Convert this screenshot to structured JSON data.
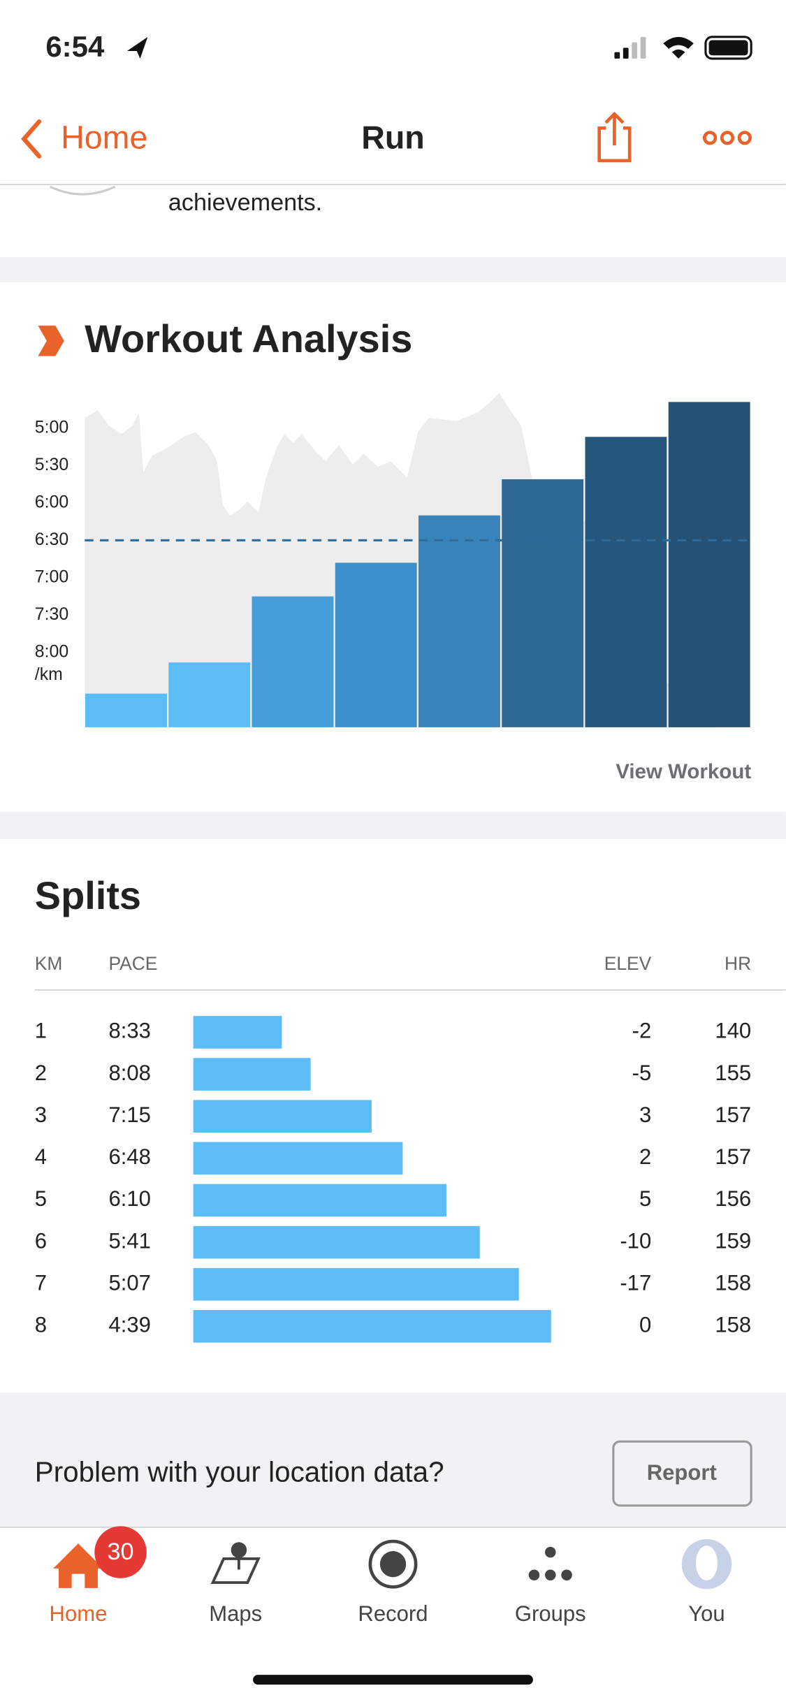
{
  "status_bar": {
    "time": "6:54"
  },
  "nav": {
    "back": "Home",
    "title": "Run"
  },
  "achievements_text": "achievements.",
  "chart_data": {
    "type": "bar",
    "title": "Workout Analysis",
    "values": [
      513,
      488,
      435,
      408,
      370,
      341,
      307,
      279
    ],
    "colors": [
      "#5cbcf6",
      "#5cbcf6",
      "#439ed9",
      "#3d90c9",
      "#3884ba",
      "#2d6994",
      "#25567b",
      "#235274"
    ],
    "ylim": [
      270,
      540
    ],
    "yticks": [
      {
        "value": 300,
        "label": "5:00"
      },
      {
        "value": 330,
        "label": "5:30"
      },
      {
        "value": 360,
        "label": "6:00"
      },
      {
        "value": 390,
        "label": "6:30"
      },
      {
        "value": 420,
        "label": "7:00"
      },
      {
        "value": 450,
        "label": "7:30"
      },
      {
        "value": 480,
        "label": "8:00"
      }
    ],
    "y_unit": "/km",
    "average": 390,
    "link": "View Workout"
  },
  "splits": {
    "title": "Splits",
    "columns": [
      "KM",
      "PACE",
      "ELEV",
      "HR"
    ],
    "rows": [
      [
        1,
        "8:33",
        -2,
        140
      ],
      [
        2,
        "8:08",
        -5,
        155
      ],
      [
        3,
        "7:15",
        3,
        157
      ],
      [
        4,
        "6:48",
        2,
        157
      ],
      [
        5,
        "6:10",
        5,
        156
      ],
      [
        6,
        "5:41",
        -10,
        159
      ],
      [
        7,
        "5:07",
        -17,
        158
      ],
      [
        8,
        "4:39",
        0,
        158
      ]
    ]
  },
  "location_prompt": {
    "text": "Problem with your location data?",
    "button": "Report"
  },
  "tabs": {
    "badge": 30,
    "items": [
      "Home",
      "Maps",
      "Record",
      "Groups",
      "You"
    ]
  }
}
